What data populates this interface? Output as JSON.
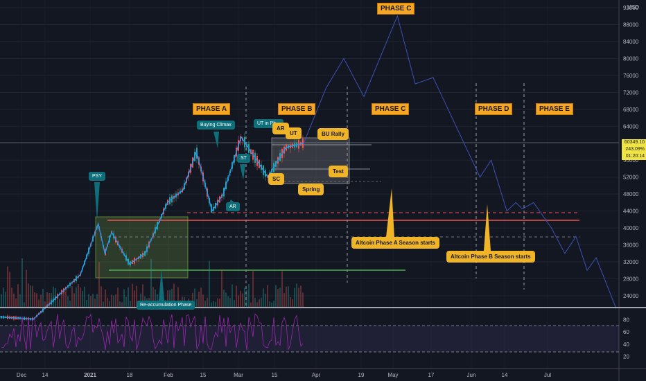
{
  "colors": {
    "background": "#131722",
    "price_line": "#2196f3",
    "projection": "#3f51b5",
    "resistance": "#ef5350",
    "support": "#4caf50",
    "rsi": "#9c27b0",
    "range_box": "#8bc34a",
    "phase_label": "#f5a623"
  },
  "currency": "USD",
  "price_label": {
    "price": "60349.10",
    "change": "243.09%",
    "time": "01:20:14"
  },
  "x_ticks": [
    "Dec",
    "14",
    "2021",
    "18",
    "Feb",
    "15",
    "Mar",
    "15",
    "Apr",
    "19",
    "May",
    "17",
    "Jun",
    "14",
    "Jul"
  ],
  "y_ticks": [
    "92000",
    "88000",
    "84000",
    "80000",
    "76000",
    "72000",
    "68000",
    "64000",
    "56000",
    "52000",
    "48000",
    "44000",
    "40000",
    "36000",
    "32000",
    "28000",
    "24000"
  ],
  "rsi_ticks": [
    "80",
    "60",
    "40",
    "20"
  ],
  "phases": {
    "a": "PHASE A",
    "b": "PHASE B",
    "c1": "PHASE C",
    "c2": "PHASE C",
    "d": "PHASE D",
    "e": "PHASE E"
  },
  "annotations": {
    "psy": "PSY",
    "buying_climax": "Buying Climax",
    "st": "ST",
    "ar_low": "AR",
    "ut_in_phase_b": "UT in Ph...",
    "ar_top": "AR",
    "ut": "UT",
    "bu_rally": "BU Rally",
    "sc": "SC",
    "spring": "Spring",
    "test": "Test",
    "reaccumulation": "Re-accumulation Phase",
    "altcoin_a": "Altcoin Phase A Season starts",
    "altcoin_b": "Altcoin Phase B Season starts"
  },
  "chart_data": {
    "type": "line",
    "title": "",
    "xlabel": "",
    "ylabel": "USD",
    "ylim": [
      20000,
      92000
    ],
    "grid": true,
    "series": [
      {
        "values": [
          {
            "date": "2020-11-25",
            "price": 19000
          },
          {
            "date": "2020-12-10",
            "price": 18500
          },
          {
            "date": "2020-12-20",
            "price": 23500
          },
          {
            "date": "2020-12-31",
            "price": 29000
          },
          {
            "date": "2021-01-08",
            "price": 41000
          },
          {
            "date": "2021-01-11",
            "price": 34000
          },
          {
            "date": "2021-01-14",
            "price": 39000
          },
          {
            "date": "2021-01-22",
            "price": 31500
          },
          {
            "date": "2021-01-29",
            "price": 34000
          },
          {
            "date": "2021-02-08",
            "price": 46000
          },
          {
            "date": "2021-02-15",
            "price": 49000
          },
          {
            "date": "2021-02-21",
            "price": 58000
          },
          {
            "date": "2021-02-28",
            "price": 44000
          },
          {
            "date": "2021-03-05",
            "price": 48000
          },
          {
            "date": "2021-03-13",
            "price": 61500
          },
          {
            "date": "2021-03-25",
            "price": 52000
          },
          {
            "date": "2021-04-02",
            "price": 59000
          },
          {
            "date": "2021-04-10",
            "price": 60000
          }
        ]
      },
      {
        "values": [
          {
            "date": "2021-04-10",
            "price": 60000
          },
          {
            "date": "2021-04-20",
            "price": 73000
          },
          {
            "date": "2021-04-28",
            "price": 80000
          },
          {
            "date": "2021-05-07",
            "price": 71000
          },
          {
            "date": "2021-05-22",
            "price": 90000
          },
          {
            "date": "2021-05-30",
            "price": 74000
          },
          {
            "date": "2021-06-07",
            "price": 75500
          },
          {
            "date": "2021-06-28",
            "price": 52000
          },
          {
            "date": "2021-07-03",
            "price": 56000
          },
          {
            "date": "2021-07-10",
            "price": 44000
          },
          {
            "date": "2021-07-14",
            "price": 46000
          },
          {
            "date": "2021-07-17",
            "price": 44500
          },
          {
            "date": "2021-07-22",
            "price": 46000
          },
          {
            "date": "2021-07-30",
            "price": 40000
          },
          {
            "date": "2021-08-05",
            "price": 34000
          },
          {
            "date": "2021-08-10",
            "price": 38000
          },
          {
            "date": "2021-08-15",
            "price": 30000
          },
          {
            "date": "2021-08-19",
            "price": 33000
          },
          {
            "date": "2021-08-28",
            "price": 21000
          }
        ]
      }
    ],
    "levels": [
      {
        "price": 43000,
        "style": "dashed-red"
      },
      {
        "price": 42000,
        "style": "solid-red"
      },
      {
        "price": 38000,
        "style": "dashed-gray"
      },
      {
        "price": 30000,
        "style": "solid-green"
      }
    ],
    "rsi_range": [
      0,
      100
    ]
  }
}
